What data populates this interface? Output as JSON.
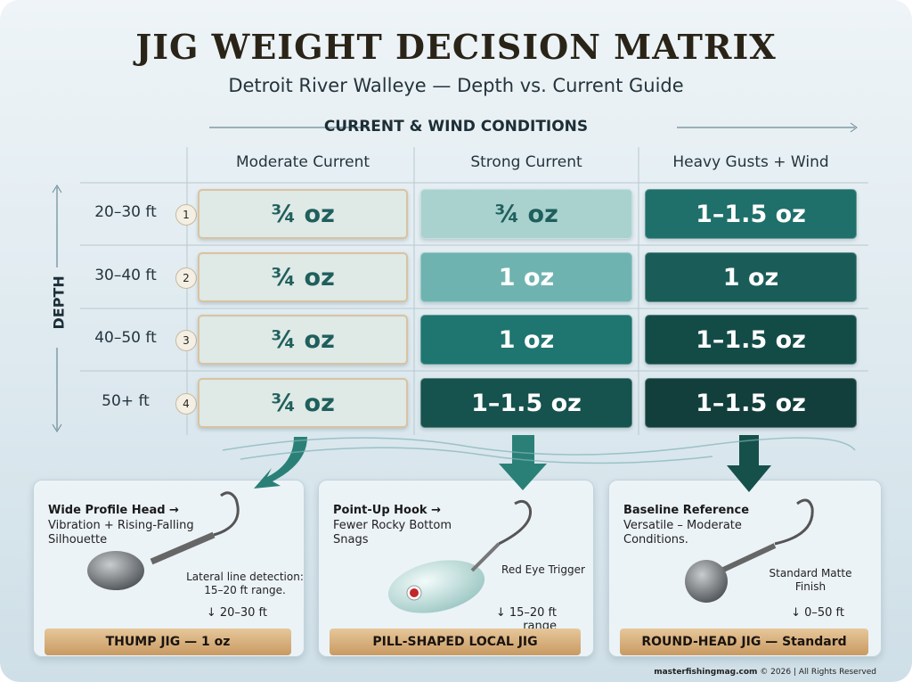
{
  "header": {
    "title": "JIG WEIGHT DECISION MATRIX",
    "subtitle": "Detroit River Walleye — Depth vs. Current Guide"
  },
  "matrix": {
    "column_group": "CURRENT & WIND CONDITIONS",
    "row_group": "DEPTH",
    "columns": [
      "Moderate Current",
      "Strong Current",
      "Heavy Gusts + Wind"
    ],
    "rows": [
      {
        "depth": "20–30 ft",
        "index": "1",
        "cells": [
          "¾ oz",
          "¾ oz",
          "1–1.5 oz"
        ]
      },
      {
        "depth": "30–40 ft",
        "index": "2",
        "cells": [
          "¾ oz",
          "1 oz",
          "1 oz"
        ]
      },
      {
        "depth": "40–50 ft",
        "index": "3",
        "cells": [
          "¾ oz",
          "1 oz",
          "1–1.5 oz"
        ]
      },
      {
        "depth": "50+ ft",
        "index": "4",
        "cells": [
          "¾ oz",
          "1–1.5 oz",
          "1–1.5 oz"
        ]
      }
    ]
  },
  "cards": [
    {
      "callout_title": "Wide Profile Head →",
      "callout_text": "Vibration + Rising-Falling Silhouette",
      "note": "Lateral line detection: 15–20 ft range.",
      "depth": "↓ 20–30 ft",
      "name": "THUMP JIG — 1 oz"
    },
    {
      "callout_title": "Point-Up Hook →",
      "callout_text": "Fewer Rocky Bottom Snags",
      "note": "Red Eye Trigger",
      "depth": "↓ 15–20 ft range",
      "name": "PILL-SHAPED LOCAL JIG"
    },
    {
      "callout_title": "Baseline Reference",
      "callout_text": "Versatile – Moderate Conditions.",
      "note": "Standard Matte Finish",
      "depth": "↓ 0–50 ft",
      "name": "ROUND-HEAD JIG — Standard"
    }
  ],
  "footer": {
    "site": "masterfishingmag.com",
    "rights": "© 2026 | All Rights Reserved"
  }
}
